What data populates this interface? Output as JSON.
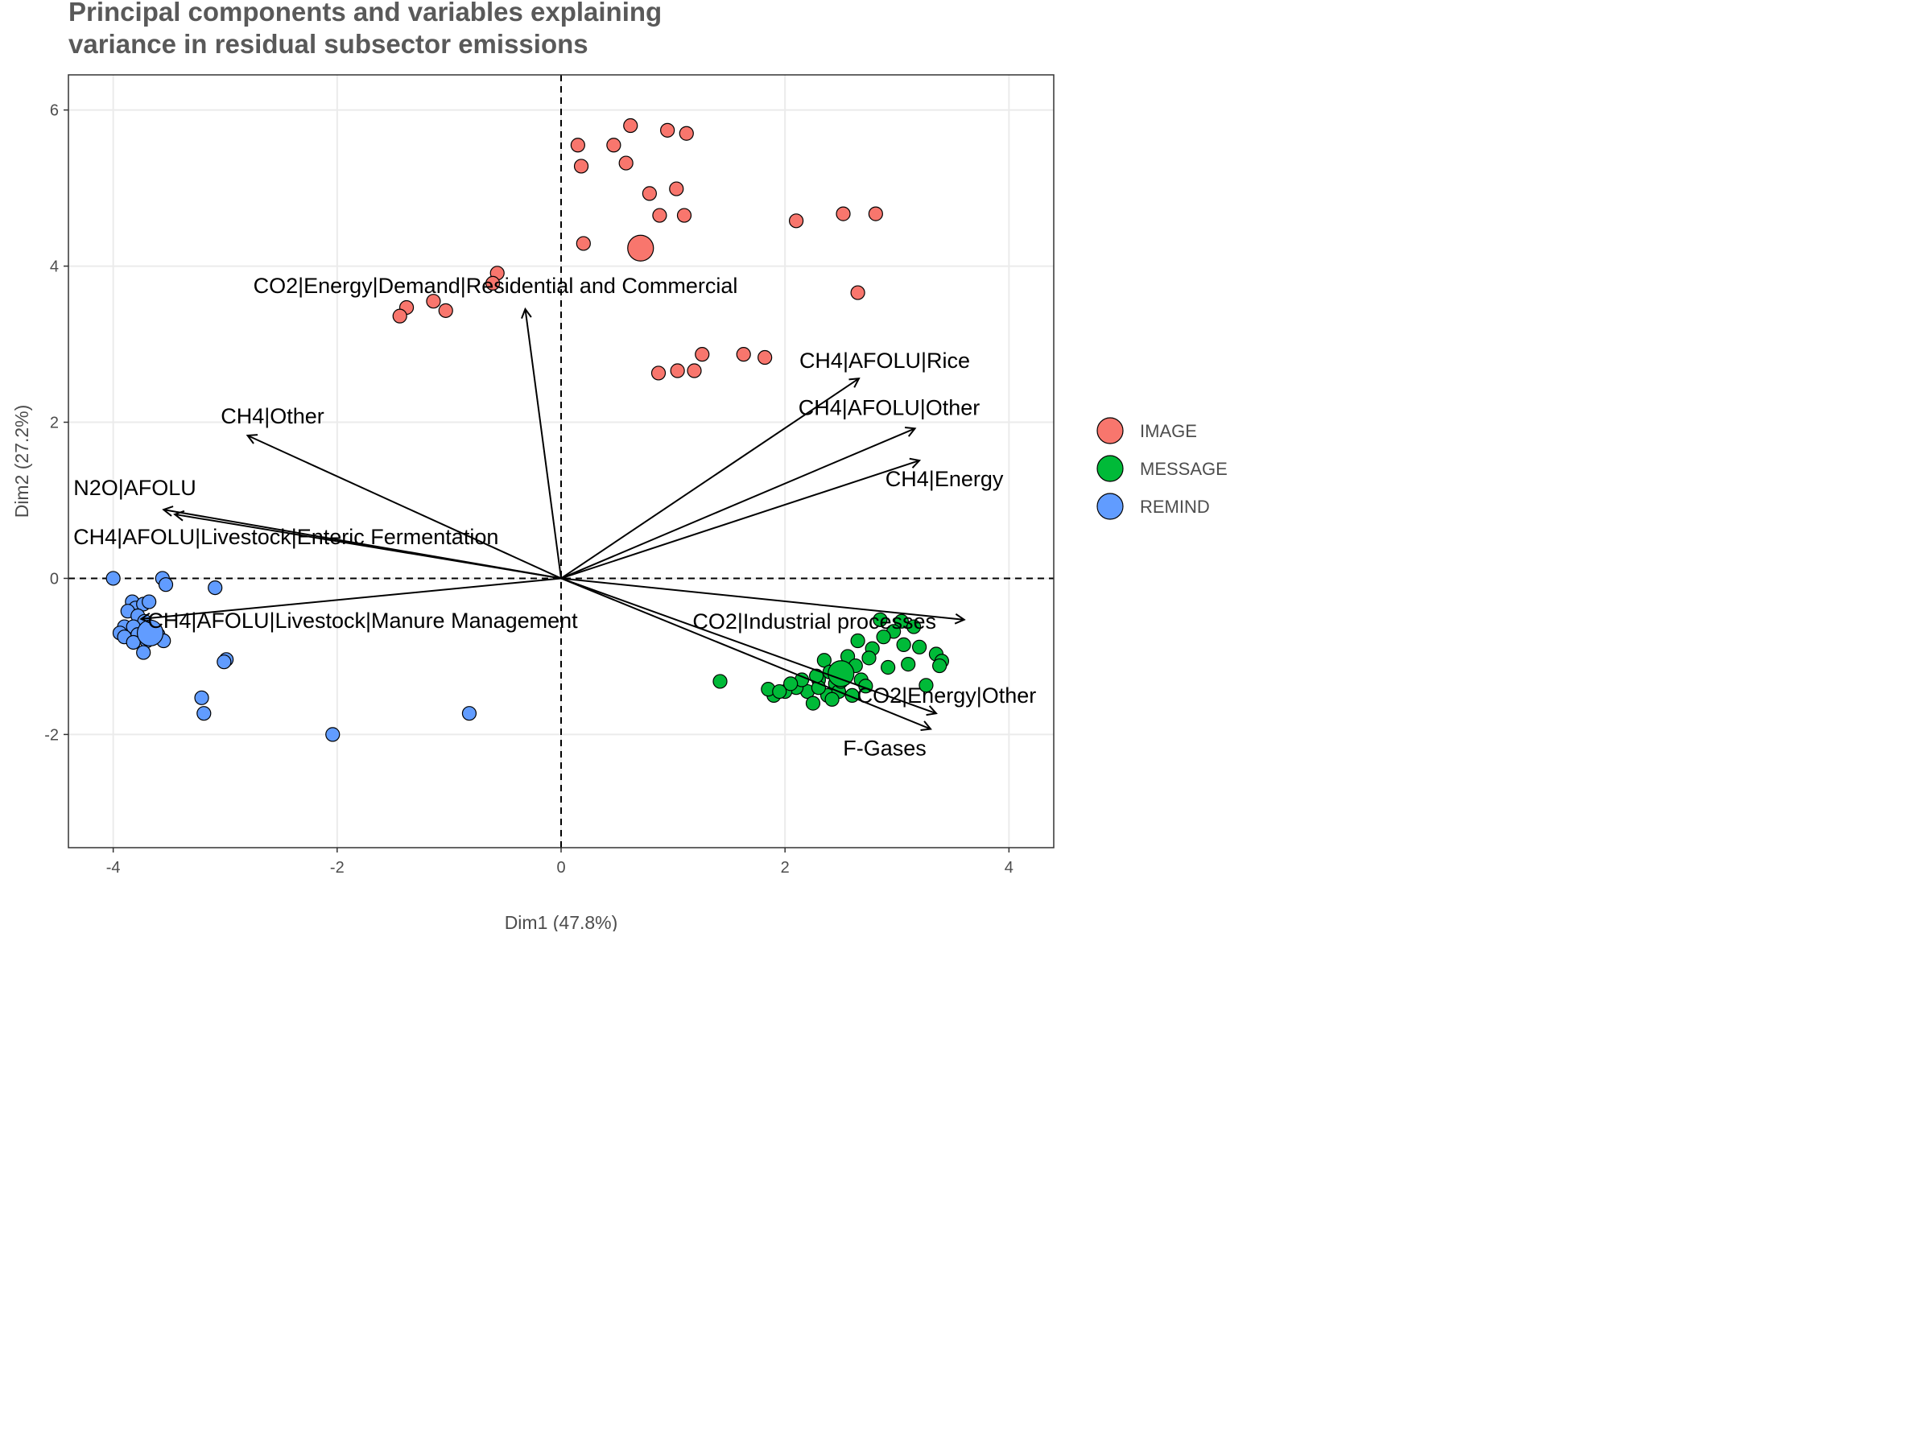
{
  "chart_data": {
    "type": "scatter",
    "title_lines": [
      "Principal components and variables explaining",
      "variance in residual subsector emissions"
    ],
    "xlabel": "Dim1 (47.8%)",
    "ylabel": "Dim2 (27.2%)",
    "xlim": [
      -4.4,
      4.4
    ],
    "ylim": [
      -3.45,
      6.45
    ],
    "x_ticks": [
      -4,
      -2,
      0,
      2,
      4
    ],
    "y_ticks": [
      -2,
      0,
      2,
      4,
      6
    ],
    "grid": true,
    "reference_lines": [
      {
        "axis": "x",
        "value": 0,
        "style": "dashed"
      },
      {
        "axis": "y",
        "value": 0,
        "style": "dashed"
      }
    ],
    "legend_position": "right",
    "series": [
      {
        "name": "IMAGE",
        "color": "#F8766D",
        "centroid": [
          0.71,
          4.23
        ],
        "points": [
          [
            0.62,
            5.8
          ],
          [
            0.95,
            5.74
          ],
          [
            1.12,
            5.7
          ],
          [
            0.15,
            5.55
          ],
          [
            0.47,
            5.55
          ],
          [
            0.18,
            5.28
          ],
          [
            0.58,
            5.32
          ],
          [
            0.79,
            4.93
          ],
          [
            1.03,
            4.99
          ],
          [
            0.88,
            4.65
          ],
          [
            1.1,
            4.65
          ],
          [
            2.1,
            4.58
          ],
          [
            2.52,
            4.67
          ],
          [
            2.81,
            4.67
          ],
          [
            0.2,
            4.29
          ],
          [
            2.65,
            3.66
          ],
          [
            -0.57,
            3.91
          ],
          [
            -0.61,
            3.78
          ],
          [
            -1.14,
            3.55
          ],
          [
            -1.03,
            3.43
          ],
          [
            -1.38,
            3.47
          ],
          [
            -1.44,
            3.36
          ],
          [
            1.26,
            2.87
          ],
          [
            1.63,
            2.87
          ],
          [
            1.82,
            2.83
          ],
          [
            0.87,
            2.63
          ],
          [
            1.04,
            2.66
          ],
          [
            1.19,
            2.66
          ]
        ]
      },
      {
        "name": "MESSAGE",
        "color": "#00BA38",
        "centroid": [
          2.5,
          -1.22
        ],
        "points": [
          [
            2.85,
            -0.53
          ],
          [
            3.04,
            -0.55
          ],
          [
            3.15,
            -0.62
          ],
          [
            3.35,
            -0.97
          ],
          [
            2.97,
            -0.68
          ],
          [
            2.65,
            -0.8
          ],
          [
            2.88,
            -0.75
          ],
          [
            2.78,
            -0.9
          ],
          [
            3.06,
            -0.85
          ],
          [
            3.2,
            -0.88
          ],
          [
            3.4,
            -1.06
          ],
          [
            2.56,
            -1.0
          ],
          [
            2.63,
            -1.12
          ],
          [
            2.75,
            -1.02
          ],
          [
            2.92,
            -1.14
          ],
          [
            3.1,
            -1.1
          ],
          [
            3.38,
            -1.12
          ],
          [
            2.35,
            -1.05
          ],
          [
            2.4,
            -1.2
          ],
          [
            2.55,
            -1.25
          ],
          [
            2.68,
            -1.3
          ],
          [
            2.45,
            -1.35
          ],
          [
            2.3,
            -1.3
          ],
          [
            2.2,
            -1.45
          ],
          [
            2.1,
            -1.4
          ],
          [
            2.0,
            -1.45
          ],
          [
            1.9,
            -1.5
          ],
          [
            1.85,
            -1.42
          ],
          [
            2.15,
            -1.3
          ],
          [
            2.38,
            -1.5
          ],
          [
            2.48,
            -1.45
          ],
          [
            2.6,
            -1.5
          ],
          [
            2.72,
            -1.38
          ],
          [
            3.26,
            -1.37
          ],
          [
            2.25,
            -1.6
          ],
          [
            1.42,
            -1.32
          ],
          [
            2.05,
            -1.35
          ],
          [
            2.3,
            -1.4
          ],
          [
            2.42,
            -1.55
          ],
          [
            1.95,
            -1.45
          ],
          [
            2.5,
            -1.32
          ],
          [
            2.28,
            -1.25
          ]
        ]
      },
      {
        "name": "REMIND",
        "color": "#619CFF",
        "centroid": [
          -3.67,
          -0.7
        ],
        "points": [
          [
            -4.0,
            0.0
          ],
          [
            -3.56,
            0.0
          ],
          [
            -3.53,
            -0.08
          ],
          [
            -3.09,
            -0.12
          ],
          [
            -3.83,
            -0.3
          ],
          [
            -3.8,
            -0.38
          ],
          [
            -3.73,
            -0.33
          ],
          [
            -3.68,
            -0.3
          ],
          [
            -3.87,
            -0.42
          ],
          [
            -3.78,
            -0.48
          ],
          [
            -3.72,
            -0.55
          ],
          [
            -3.9,
            -0.62
          ],
          [
            -3.82,
            -0.62
          ],
          [
            -3.94,
            -0.7
          ],
          [
            -3.65,
            -0.68
          ],
          [
            -3.78,
            -0.72
          ],
          [
            -3.9,
            -0.75
          ],
          [
            -3.6,
            -0.72
          ],
          [
            -3.7,
            -0.8
          ],
          [
            -3.82,
            -0.82
          ],
          [
            -3.55,
            -0.8
          ],
          [
            -3.73,
            -0.95
          ],
          [
            -2.99,
            -1.04
          ],
          [
            -3.01,
            -1.07
          ],
          [
            -3.21,
            -1.53
          ],
          [
            -3.19,
            -1.73
          ],
          [
            -0.82,
            -1.73
          ],
          [
            -2.04,
            -2.0
          ]
        ]
      }
    ],
    "variables": [
      {
        "name": "CO2|Energy|Demand|Residential and Commercial",
        "x": -0.32,
        "y": 3.45
      },
      {
        "name": "CH4|AFOLU|Rice",
        "x": 2.66,
        "y": 2.56
      },
      {
        "name": "CH4|AFOLU|Other",
        "x": 3.16,
        "y": 1.92
      },
      {
        "name": "CH4|Energy",
        "x": 3.2,
        "y": 1.51
      },
      {
        "name": "CH4|Other",
        "x": -2.8,
        "y": 1.83
      },
      {
        "name": "N2O|AFOLU",
        "x": -3.55,
        "y": 0.88
      },
      {
        "name": "CH4|AFOLU|Livestock|Enteric Fermentation",
        "x": -3.45,
        "y": 0.82
      },
      {
        "name": "CH4|AFOLU|Livestock|Manure Management",
        "x": -3.75,
        "y": -0.52
      },
      {
        "name": "CO2|Industrial processes",
        "x": 3.6,
        "y": -0.53
      },
      {
        "name": "CO2|Energy|Other",
        "x": 3.35,
        "y": -1.73
      },
      {
        "name": "F-Gases",
        "x": 3.3,
        "y": -1.93
      }
    ]
  }
}
